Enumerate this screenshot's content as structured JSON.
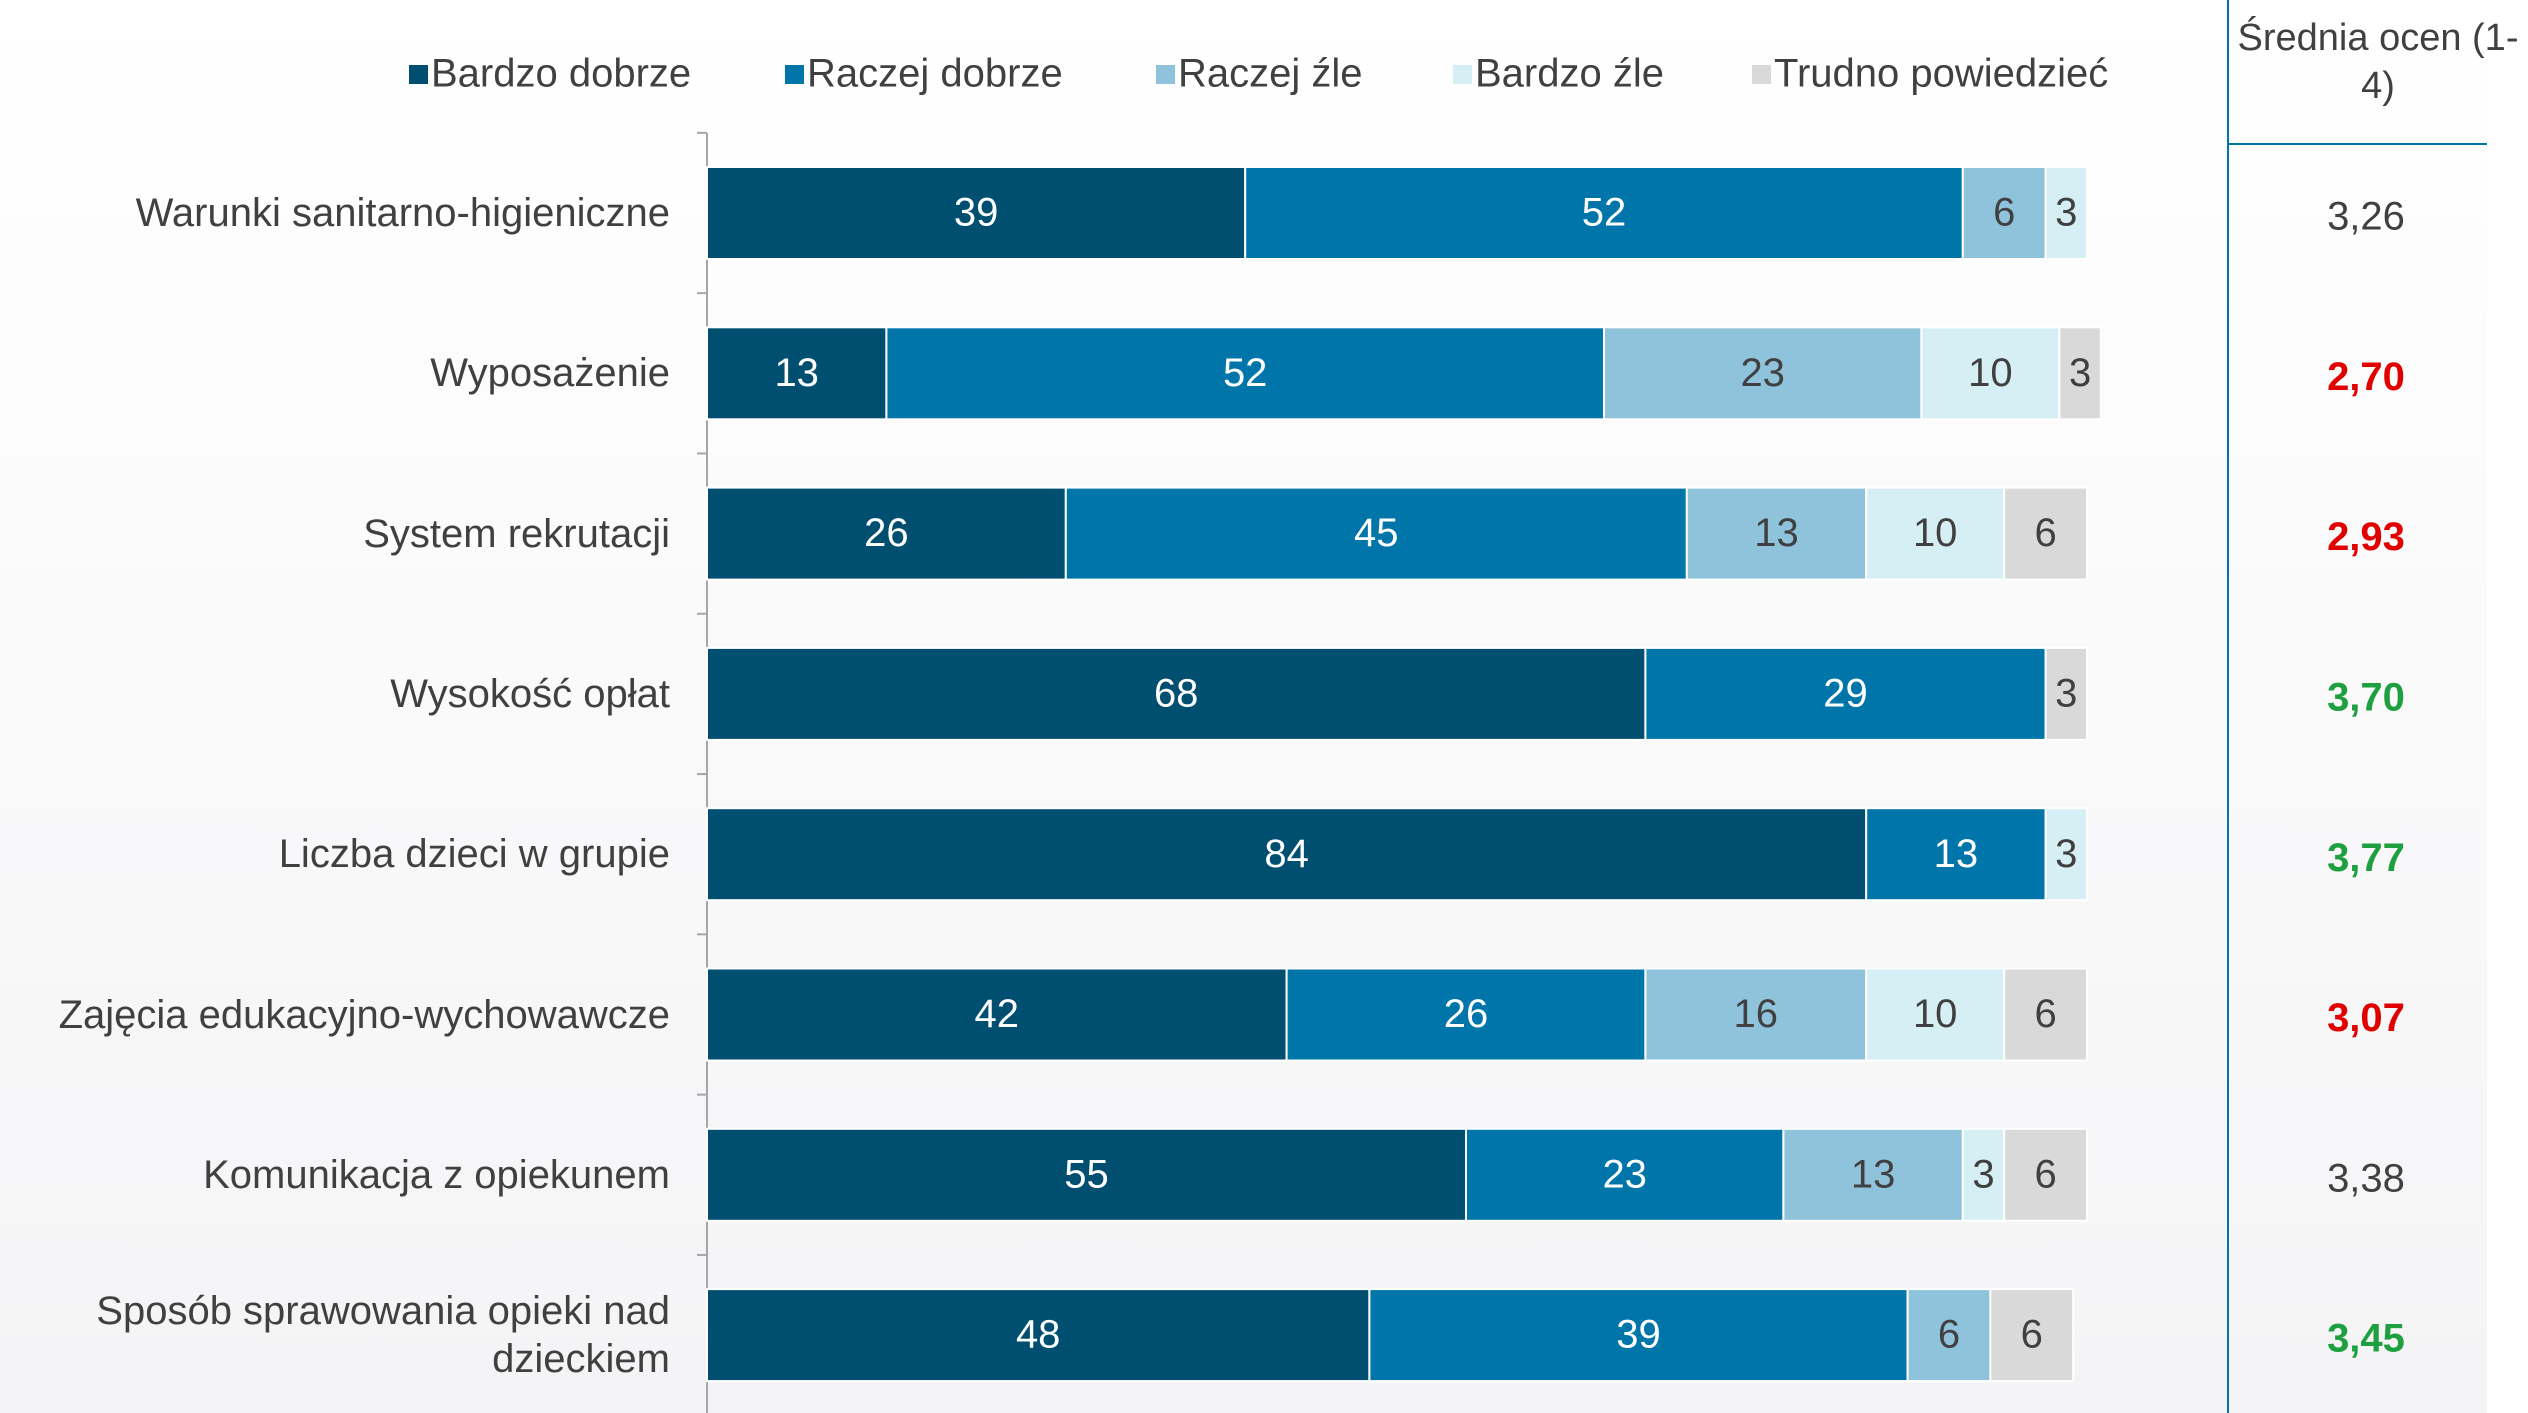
{
  "chart_data": {
    "type": "stacked_bar_horizontal",
    "categories": [
      "Warunki sanitarno-higieniczne",
      "Wyposażenie",
      "System rekrutacji",
      "Wysokość opłat",
      "Liczba dzieci w grupie",
      "Zajęcia edukacyjno-wychowawcze",
      "Komunikacja z opiekunem",
      "Sposób sprawowania opieki nad dzieckiem"
    ],
    "series": [
      {
        "name": "Bardzo dobrze",
        "color": "#004f71",
        "values": [
          39,
          13,
          26,
          68,
          84,
          42,
          55,
          48
        ]
      },
      {
        "name": "Raczej dobrze",
        "color": "#0075aa",
        "values": [
          52,
          52,
          45,
          29,
          13,
          26,
          23,
          39
        ]
      },
      {
        "name": "Raczej źle",
        "color": "#8fc3dc",
        "values": [
          6,
          23,
          13,
          null,
          null,
          16,
          13,
          6
        ]
      },
      {
        "name": "Bardzo źle",
        "color": "#d6eff5",
        "values": [
          3,
          10,
          10,
          null,
          3,
          10,
          3,
          null
        ]
      },
      {
        "name": "Trudno powiedzieć",
        "color": "#d9d9d9",
        "values": [
          null,
          3,
          6,
          3,
          null,
          6,
          6,
          6
        ]
      }
    ],
    "xlim": [
      0,
      100
    ],
    "legend": "top",
    "side_table": {
      "header": "Średnia ocen (1-4)",
      "values": [
        "3,26",
        "2,70",
        "2,93",
        "3,70",
        "3,77",
        "3,07",
        "3,38",
        "3,45"
      ],
      "colors": [
        "#404040",
        "#e00000",
        "#e00000",
        "#1fa040",
        "#1fa040",
        "#e00000",
        "#404040",
        "#1fa040"
      ]
    }
  }
}
